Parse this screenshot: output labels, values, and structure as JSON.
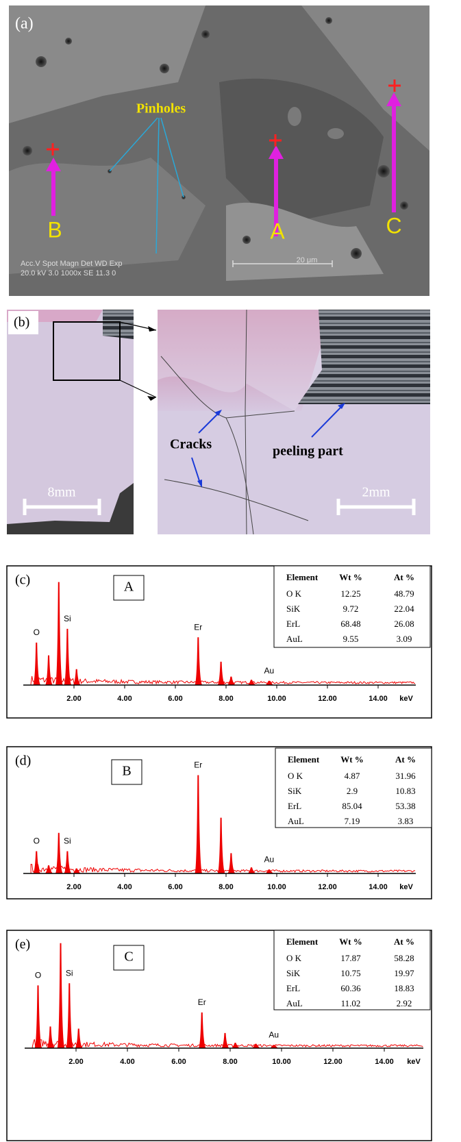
{
  "panel_a": {
    "label": "(a)",
    "annotation": "Pinholes",
    "points": [
      "A",
      "B",
      "C"
    ],
    "info_header": "Acc.V  Spot  Magn    Det   WD   Exp",
    "info_values": "20.0 kV  3.0   1000x   SE   11.3   0",
    "scale": "20 μm"
  },
  "panel_b": {
    "label": "(b)",
    "scale_left": "8mm",
    "scale_right": "2mm",
    "cracks": "Cracks",
    "peeling": "peeling part"
  },
  "spectra": [
    {
      "label": "(c)",
      "point": "A",
      "xticks": [
        {
          "value": 2,
          "label": "2.00"
        },
        {
          "value": 4,
          "label": "4.00"
        },
        {
          "value": 6,
          "label": "6.00"
        },
        {
          "value": 8,
          "label": "8.00"
        },
        {
          "value": 10,
          "label": "10.00"
        },
        {
          "value": 12,
          "label": "12.00"
        },
        {
          "value": 14,
          "label": "14.00"
        }
      ],
      "x_unit": "keV",
      "peaks": {
        "x": [
          0.52,
          1.0,
          1.4,
          1.74,
          2.1,
          6.9,
          7.8,
          8.2,
          9.0,
          9.7
        ],
        "heights": [
          40,
          28,
          97,
          53,
          15,
          45,
          22,
          8,
          5,
          4
        ],
        "labels": [
          "O",
          null,
          null,
          "Si",
          null,
          "Er",
          null,
          null,
          null,
          "Au"
        ]
      },
      "table": {
        "header": [
          "Element",
          "Wt %",
          "At %"
        ],
        "rows": [
          [
            "O K",
            "12.25",
            "48.79"
          ],
          [
            "SiK",
            "9.72",
            "22.04"
          ],
          [
            "ErL",
            "68.48",
            "26.08"
          ],
          [
            "AuL",
            "9.55",
            "3.09"
          ]
        ]
      }
    },
    {
      "label": "(d)",
      "point": "B",
      "xticks": [
        {
          "value": 2,
          "label": "2.00"
        },
        {
          "value": 4,
          "label": "4.00"
        },
        {
          "value": 6,
          "label": "6.00"
        },
        {
          "value": 8,
          "label": "8.00"
        },
        {
          "value": 10,
          "label": "10.00"
        },
        {
          "value": 12,
          "label": "12.00"
        },
        {
          "value": 14,
          "label": "14.00"
        }
      ],
      "x_unit": "keV",
      "peaks": {
        "x": [
          0.52,
          1.0,
          1.4,
          1.74,
          2.1,
          6.9,
          7.8,
          8.2,
          9.0,
          9.7
        ],
        "heights": [
          22,
          8,
          40,
          22,
          5,
          97,
          55,
          20,
          6,
          4
        ],
        "labels": [
          "O",
          null,
          null,
          "Si",
          null,
          "Er",
          null,
          null,
          null,
          "Au"
        ]
      },
      "table": {
        "header": [
          "Element",
          "Wt %",
          "At %"
        ],
        "rows": [
          [
            "O K",
            "4.87",
            "31.96"
          ],
          [
            "SiK",
            "2.9",
            "10.83"
          ],
          [
            "ErL",
            "85.04",
            "53.38"
          ],
          [
            "AuL",
            "7.19",
            "3.83"
          ]
        ]
      }
    },
    {
      "label": "(e)",
      "point": "C",
      "xticks": [
        {
          "value": 2,
          "label": "2.00"
        },
        {
          "value": 4,
          "label": "4.00"
        },
        {
          "value": 6,
          "label": "6.00"
        },
        {
          "value": 8,
          "label": "8.00"
        },
        {
          "value": 10,
          "label": "10.00"
        },
        {
          "value": 12,
          "label": "12.00"
        },
        {
          "value": 14,
          "label": "14.00"
        }
      ],
      "x_unit": "keV",
      "peaks": {
        "x": [
          0.52,
          1.0,
          1.4,
          1.74,
          2.1,
          6.9,
          7.8,
          8.2,
          9.0,
          9.7
        ],
        "heights": [
          58,
          20,
          97,
          60,
          18,
          33,
          14,
          5,
          4,
          3
        ],
        "labels": [
          "O",
          null,
          null,
          "Si",
          null,
          "Er",
          null,
          null,
          null,
          "Au"
        ]
      },
      "table": {
        "header": [
          "Element",
          "Wt %",
          "At %"
        ],
        "rows": [
          [
            "O K",
            "17.87",
            "58.28"
          ],
          [
            "SiK",
            "10.75",
            "19.97"
          ],
          [
            "ErL",
            "60.36",
            "18.83"
          ],
          [
            "AuL",
            "11.02",
            "2.92"
          ]
        ]
      }
    }
  ]
}
